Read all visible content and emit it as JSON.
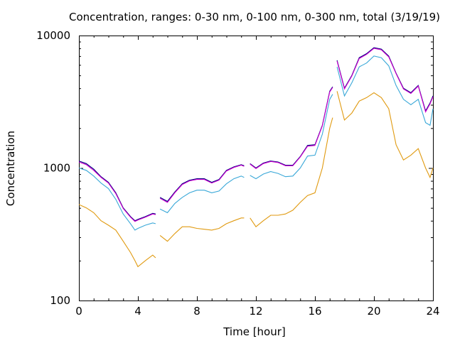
{
  "chart_data": {
    "type": "line",
    "title": "Concentration, ranges: 0-30 nm, 0-100 nm, 0-300 nm, total (3/19/19)",
    "xlabel": "Time [hour]",
    "ylabel": "Concentration",
    "xlim": [
      0,
      24
    ],
    "ylim": [
      100,
      10000
    ],
    "yscale": "log",
    "grid": false,
    "legend": "none",
    "xticks": [
      0,
      4,
      8,
      12,
      16,
      20,
      24
    ],
    "xtick_labels": [
      "0",
      "4",
      "8",
      "12",
      "16",
      "20",
      "24"
    ],
    "yticks": [
      100,
      1000,
      10000
    ],
    "ytick_labels": [
      "100",
      "1000",
      "10000"
    ],
    "x": [
      0,
      0.5,
      1,
      1.5,
      2,
      2.5,
      3,
      3.5,
      3.8,
      4,
      4.5,
      5,
      5.2,
      5.5,
      6,
      6.5,
      7,
      7.5,
      8,
      8.5,
      9,
      9.5,
      10,
      10.5,
      11,
      11.2,
      11.6,
      12,
      12.5,
      13,
      13.5,
      14,
      14.5,
      15,
      15.5,
      16,
      16.5,
      17,
      17.2,
      17.5,
      18,
      18.5,
      19,
      19.5,
      20,
      20.5,
      21,
      21.5,
      22,
      22.5,
      23,
      23.5,
      23.8,
      24
    ],
    "series": [
      {
        "color": "#000080",
        "values": [
          1130,
          1080,
          980,
          860,
          780,
          650,
          500,
          430,
          400,
          410,
          430,
          455,
          450,
          600,
          560,
          660,
          760,
          810,
          830,
          830,
          780,
          820,
          960,
          1020,
          1060,
          1040,
          1080,
          1000,
          1090,
          1130,
          1110,
          1050,
          1050,
          1220,
          1480,
          1500,
          2100,
          3800,
          4100,
          6500,
          4000,
          5000,
          6800,
          7300,
          8100,
          7900,
          7000,
          5200,
          4000,
          3700,
          4200,
          2700,
          3100,
          3500
        ]
      },
      {
        "color": "#d000d0",
        "values": [
          1110,
          1060,
          960,
          850,
          770,
          640,
          495,
          425,
          395,
          405,
          425,
          450,
          445,
          590,
          550,
          650,
          750,
          800,
          820,
          820,
          770,
          810,
          950,
          1010,
          1050,
          1030,
          1070,
          990,
          1080,
          1120,
          1100,
          1040,
          1040,
          1210,
          1460,
          1480,
          2080,
          3750,
          4050,
          6400,
          3950,
          4950,
          6700,
          7200,
          8000,
          7800,
          6900,
          5150,
          3950,
          3650,
          4150,
          2650,
          3050,
          3450
        ]
      },
      {
        "color": "#3aa8d8",
        "values": [
          1000,
          960,
          870,
          770,
          700,
          580,
          450,
          380,
          340,
          350,
          370,
          385,
          380,
          490,
          460,
          540,
          600,
          650,
          680,
          680,
          650,
          670,
          760,
          830,
          870,
          850,
          880,
          830,
          900,
          940,
          910,
          860,
          870,
          1000,
          1230,
          1250,
          1800,
          3300,
          3600,
          5800,
          3500,
          4400,
          5800,
          6200,
          7000,
          6800,
          5900,
          4200,
          3300,
          3000,
          3300,
          2200,
          2100,
          2800
        ]
      },
      {
        "color": "#e09a10",
        "values": [
          530,
          500,
          460,
          400,
          370,
          340,
          280,
          230,
          200,
          180,
          200,
          220,
          210,
          310,
          280,
          320,
          360,
          360,
          350,
          345,
          340,
          350,
          380,
          400,
          420,
          420,
          420,
          360,
          400,
          440,
          440,
          450,
          480,
          550,
          620,
          650,
          1000,
          2000,
          2400,
          3800,
          2300,
          2600,
          3200,
          3400,
          3700,
          3400,
          2800,
          1500,
          1150,
          1250,
          1400,
          1000,
          850,
          1000
        ]
      }
    ]
  }
}
